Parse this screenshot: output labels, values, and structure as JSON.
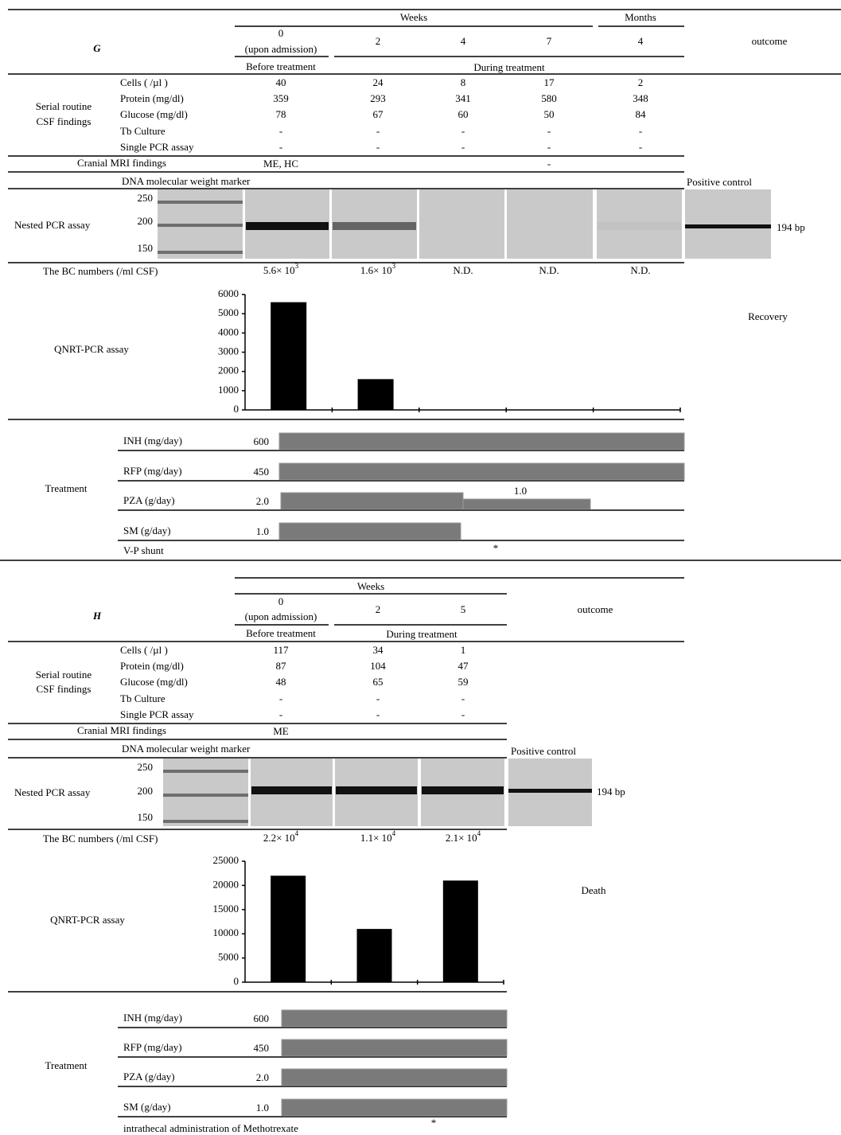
{
  "panels": [
    {
      "letter": "G",
      "weeks_label": "Weeks",
      "months_label": "Months",
      "timepoints": [
        0,
        2,
        4,
        7,
        4
      ],
      "admission_note": "(upon admission)",
      "phase_before": "Before treatment",
      "phase_during": "During treatment",
      "outcome_label": "outcome",
      "outcome": "Recovery",
      "csf_group": [
        "Serial routine",
        "CSF findings"
      ],
      "csf_rows": [
        {
          "label": "Cells ( /µl )",
          "values": [
            40,
            24,
            8,
            17,
            2
          ]
        },
        {
          "label": "Protein (mg/dl)",
          "values": [
            359,
            293,
            341,
            580,
            348
          ]
        },
        {
          "label": "Glucose (mg/dl)",
          "values": [
            78,
            67,
            60,
            50,
            84
          ]
        },
        {
          "label": "Tb Culture",
          "values": [
            "-",
            "-",
            "-",
            "-",
            "-"
          ]
        },
        {
          "label": "Single PCR assay",
          "values": [
            "-",
            "-",
            "-",
            "-",
            "-"
          ]
        }
      ],
      "mri": {
        "label": "Cranial MRI findings",
        "values": [
          "ME, HC",
          null,
          null,
          "-",
          null
        ]
      },
      "gel": {
        "marker_label": "DNA molecular weight marker",
        "marker_sizes": [
          250,
          200,
          150
        ],
        "assay_label": "Nested PCR",
        "assay_suffix": "assay",
        "positive_control": "Positive control",
        "band_size": "194 bp"
      },
      "bc": {
        "label": "The BC numbers (/ml CSF)",
        "values": [
          {
            "base": "5.6× 10",
            "exp": "3"
          },
          {
            "base": "1.6× 10",
            "exp": "3"
          },
          "N.D.",
          "N.D.",
          "N.D."
        ]
      },
      "treatment": {
        "label": "Treatment",
        "drugs": [
          {
            "name": "INH (mg/day)",
            "doses": [
              600
            ]
          },
          {
            "name": "RFP (mg/day)",
            "doses": [
              450
            ]
          },
          {
            "name": "PZA (g/day)",
            "doses": [
              "2.0",
              "1.0"
            ]
          },
          {
            "name": "SM   (g/day)",
            "doses": [
              "1.0"
            ]
          }
        ],
        "event": {
          "name": "V-P shunt",
          "marker": "*"
        }
      }
    },
    {
      "letter": "H",
      "weeks_label": "Weeks",
      "timepoints": [
        0,
        2,
        5
      ],
      "admission_note": "(upon admission)",
      "phase_before": "Before treatment",
      "phase_during": "During treatment",
      "outcome_label": "outcome",
      "outcome": "Death",
      "csf_group": [
        "Serial routine",
        "CSF findings"
      ],
      "csf_rows": [
        {
          "label": "Cells ( /µl )",
          "values": [
            117,
            34,
            1
          ]
        },
        {
          "label": "Protein (mg/dl)",
          "values": [
            87,
            104,
            47
          ]
        },
        {
          "label": "Glucose (mg/dl)",
          "values": [
            48,
            65,
            59
          ]
        },
        {
          "label": "Tb Culture",
          "values": [
            "-",
            "-",
            "-"
          ]
        },
        {
          "label": "Single PCR assay",
          "values": [
            "-",
            "-",
            "-"
          ]
        }
      ],
      "mri": {
        "label": "Cranial MRI findings",
        "values": [
          "ME",
          null,
          null
        ]
      },
      "gel": {
        "marker_label": "DNA molecular weight marker",
        "marker_sizes": [
          250,
          200,
          150
        ],
        "assay_label": "Nested PCR assay",
        "positive_control": "Positive control",
        "band_size": "194 bp"
      },
      "bc": {
        "label": "The BC numbers (/ml CSF)",
        "values": [
          {
            "base": "2.2× 10",
            "exp": "4"
          },
          {
            "base": "1.1× 10",
            "exp": "4"
          },
          {
            "base": "2.1× 10",
            "exp": "4"
          }
        ]
      },
      "treatment": {
        "label": "Treatment",
        "drugs": [
          {
            "name": "INH (mg/day)",
            "doses": [
              600
            ]
          },
          {
            "name": "RFP (mg/day)",
            "doses": [
              450
            ]
          },
          {
            "name": "PZA (g/day)",
            "doses": [
              "2.0"
            ]
          },
          {
            "name": "SM   (g/day)",
            "doses": [
              "1.0"
            ]
          }
        ],
        "event": {
          "name": "intrathecal administration of Methotrexate",
          "marker": "*"
        }
      }
    }
  ],
  "chart_data": [
    {
      "type": "bar",
      "title": "QNRT-PCR assay",
      "categories": [
        null,
        null,
        null,
        null,
        null
      ],
      "values": [
        5600,
        1600,
        0,
        0,
        0
      ],
      "color": "#000000",
      "ylim": [
        0,
        6000
      ],
      "yticks": [
        0,
        1000,
        2000,
        3000,
        4000,
        5000,
        6000
      ]
    },
    {
      "type": "bar",
      "title": "QNRT-PCR assay",
      "categories": [
        null,
        null,
        null
      ],
      "values": [
        22000,
        11000,
        21000
      ],
      "color": "#000000",
      "ylim": [
        0,
        25000
      ],
      "yticks": [
        0,
        5000,
        10000,
        15000,
        20000,
        25000
      ]
    }
  ]
}
